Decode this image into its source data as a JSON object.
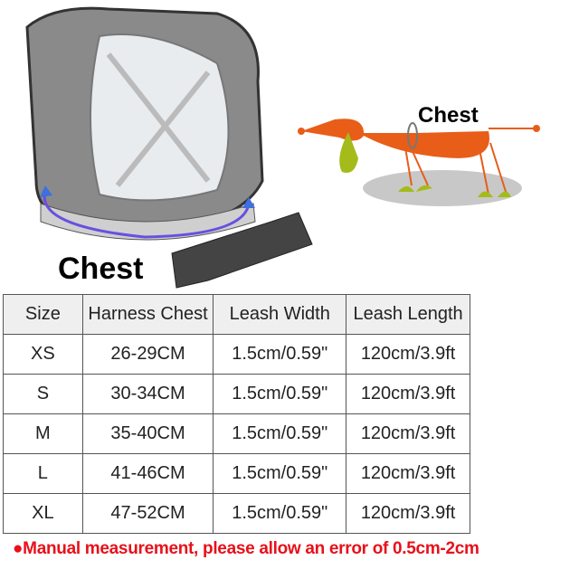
{
  "illustration": {
    "harness_label": "Chest",
    "dog_label": "Chest",
    "colors": {
      "dog": "#e85d18",
      "accent_green": "#a4bb1a",
      "shadow": "#c8c8c8",
      "measure_arrow": "#6a4fe0"
    }
  },
  "table": {
    "headers": [
      "Size",
      "Harness Chest",
      "Leash Width",
      "Leash Length"
    ],
    "rows": [
      [
        "XS",
        "26-29CM",
        "1.5cm/0.59\"",
        "120cm/3.9ft"
      ],
      [
        "S",
        "30-34CM",
        "1.5cm/0.59\"",
        "120cm/3.9ft"
      ],
      [
        "M",
        "35-40CM",
        "1.5cm/0.59\"",
        "120cm/3.9ft"
      ],
      [
        "L",
        "41-46CM",
        "1.5cm/0.59\"",
        "120cm/3.9ft"
      ],
      [
        "XL",
        "47-52CM",
        "1.5cm/0.59\"",
        "120cm/3.9ft"
      ]
    ]
  },
  "note": "●Manual measurement, please allow an error of 0.5cm-2cm"
}
